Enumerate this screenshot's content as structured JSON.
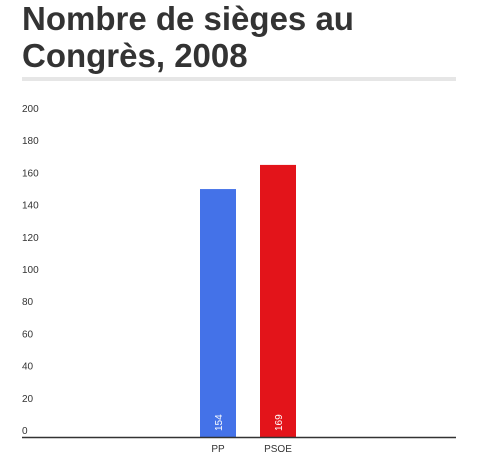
{
  "chart_data": {
    "type": "bar",
    "title_lines": [
      "Nombre de sièges au",
      "Congrès, 2008"
    ],
    "categories": [
      "PP",
      "PSOE"
    ],
    "values": [
      154,
      169
    ],
    "colors": [
      "#4472e8",
      "#e3141a"
    ],
    "ylim": [
      0,
      200
    ],
    "yticks": [
      0,
      20,
      40,
      60,
      80,
      100,
      120,
      140,
      160,
      180,
      200
    ],
    "grid": false,
    "data_labels": [
      "154",
      "169"
    ]
  }
}
